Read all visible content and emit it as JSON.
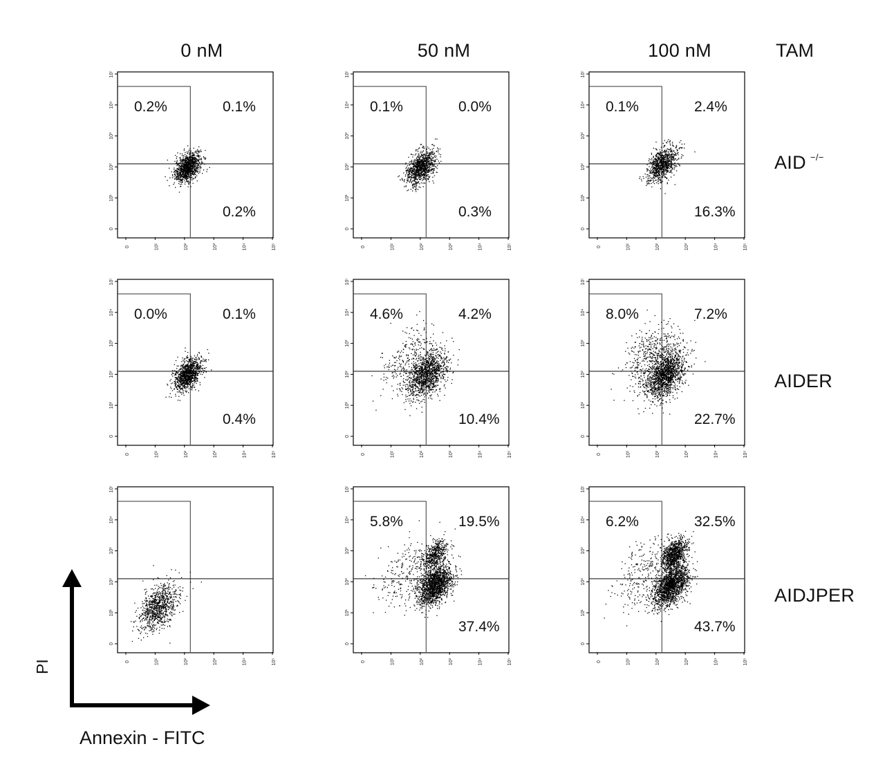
{
  "columns": [
    {
      "label": "0 nM"
    },
    {
      "label": "50 nM"
    },
    {
      "label": "100 nM"
    }
  ],
  "tam_label": "TAM",
  "rows": [
    {
      "label": "AID",
      "superscript": "−/−"
    },
    {
      "label": "AIDER",
      "superscript": ""
    },
    {
      "label": "AIDJPER",
      "superscript": ""
    }
  ],
  "axes": {
    "y_label": "PI",
    "x_label": "Annexin - FITC",
    "tick_labels": [
      "0",
      "10¹",
      "10²",
      "10³",
      "10⁴",
      "10⁵"
    ]
  },
  "chart_data": [
    {
      "type": "scatter",
      "row": "AID −/−",
      "tam": "0 nM",
      "quadrants": {
        "upper_left": "0.2%",
        "upper_right": "0.1%",
        "lower_right": "0.2%"
      },
      "populations": [
        {
          "x_log": 2.1,
          "y_log": 2.0,
          "spread": 0.22,
          "n": 1100
        }
      ],
      "x_range_log": [
        0,
        5
      ],
      "y_range_log": [
        0,
        5
      ]
    },
    {
      "type": "scatter",
      "row": "AID −/−",
      "tam": "50 nM",
      "quadrants": {
        "upper_left": "0.1%",
        "upper_right": "0.0%",
        "lower_right": "0.3%"
      },
      "populations": [
        {
          "x_log": 2.0,
          "y_log": 2.0,
          "spread": 0.25,
          "n": 1000
        }
      ],
      "x_range_log": [
        0,
        5
      ],
      "y_range_log": [
        0,
        5
      ]
    },
    {
      "type": "scatter",
      "row": "AID −/−",
      "tam": "100 nM",
      "quadrants": {
        "upper_left": "0.1%",
        "upper_right": "2.4%",
        "lower_right": "16.3%"
      },
      "populations": [
        {
          "x_log": 2.2,
          "y_log": 2.1,
          "spread": 0.25,
          "n": 900
        }
      ],
      "x_range_log": [
        0,
        5
      ],
      "y_range_log": [
        0,
        5
      ]
    },
    {
      "type": "scatter",
      "row": "AIDER",
      "tam": "0 nM",
      "quadrants": {
        "upper_left": "0.0%",
        "upper_right": "0.1%",
        "lower_right": "0.4%"
      },
      "populations": [
        {
          "x_log": 2.1,
          "y_log": 2.0,
          "spread": 0.24,
          "n": 1100
        }
      ],
      "x_range_log": [
        0,
        5
      ],
      "y_range_log": [
        0,
        5
      ]
    },
    {
      "type": "scatter",
      "row": "AIDER",
      "tam": "50 nM",
      "quadrants": {
        "upper_left": "4.6%",
        "upper_right": "4.2%",
        "lower_right": "10.4%"
      },
      "populations": [
        {
          "x_log": 2.2,
          "y_log": 2.0,
          "spread": 0.35,
          "n": 1300
        },
        {
          "x_log": 1.6,
          "y_log": 2.6,
          "spread": 0.45,
          "n": 250
        }
      ],
      "x_range_log": [
        0,
        5
      ],
      "y_range_log": [
        0,
        5
      ]
    },
    {
      "type": "scatter",
      "row": "AIDER",
      "tam": "100 nM",
      "quadrants": {
        "upper_left": "8.0%",
        "upper_right": "7.2%",
        "lower_right": "22.7%"
      },
      "populations": [
        {
          "x_log": 2.3,
          "y_log": 2.0,
          "spread": 0.35,
          "n": 1500
        },
        {
          "x_log": 1.8,
          "y_log": 2.7,
          "spread": 0.45,
          "n": 400
        }
      ],
      "x_range_log": [
        0,
        5
      ],
      "y_range_log": [
        0,
        5
      ]
    },
    {
      "type": "scatter",
      "row": "AIDJPER",
      "tam": "0 nM",
      "quadrants": {},
      "populations": [
        {
          "x_log": 1.1,
          "y_log": 1.2,
          "spread": 0.35,
          "n": 900
        }
      ],
      "x_range_log": [
        0,
        5
      ],
      "y_range_log": [
        0,
        5
      ]
    },
    {
      "type": "scatter",
      "row": "AIDJPER",
      "tam": "50 nM",
      "quadrants": {
        "upper_left": "5.8%",
        "upper_right": "19.5%",
        "lower_right": "37.4%"
      },
      "populations": [
        {
          "x_log": 2.5,
          "y_log": 1.9,
          "spread": 0.3,
          "n": 1600
        },
        {
          "x_log": 2.5,
          "y_log": 2.9,
          "spread": 0.22,
          "n": 500
        },
        {
          "x_log": 1.5,
          "y_log": 2.2,
          "spread": 0.5,
          "n": 250
        }
      ],
      "x_range_log": [
        0,
        5
      ],
      "y_range_log": [
        0,
        5
      ]
    },
    {
      "type": "scatter",
      "row": "AIDJPER",
      "tam": "100 nM",
      "quadrants": {
        "upper_left": "6.2%",
        "upper_right": "32.5%",
        "lower_right": "43.7%"
      },
      "populations": [
        {
          "x_log": 2.5,
          "y_log": 1.9,
          "spread": 0.3,
          "n": 1700
        },
        {
          "x_log": 2.6,
          "y_log": 2.9,
          "spread": 0.22,
          "n": 900
        },
        {
          "x_log": 1.5,
          "y_log": 2.3,
          "spread": 0.5,
          "n": 250
        }
      ],
      "x_range_log": [
        0,
        5
      ],
      "y_range_log": [
        0,
        5
      ]
    }
  ]
}
